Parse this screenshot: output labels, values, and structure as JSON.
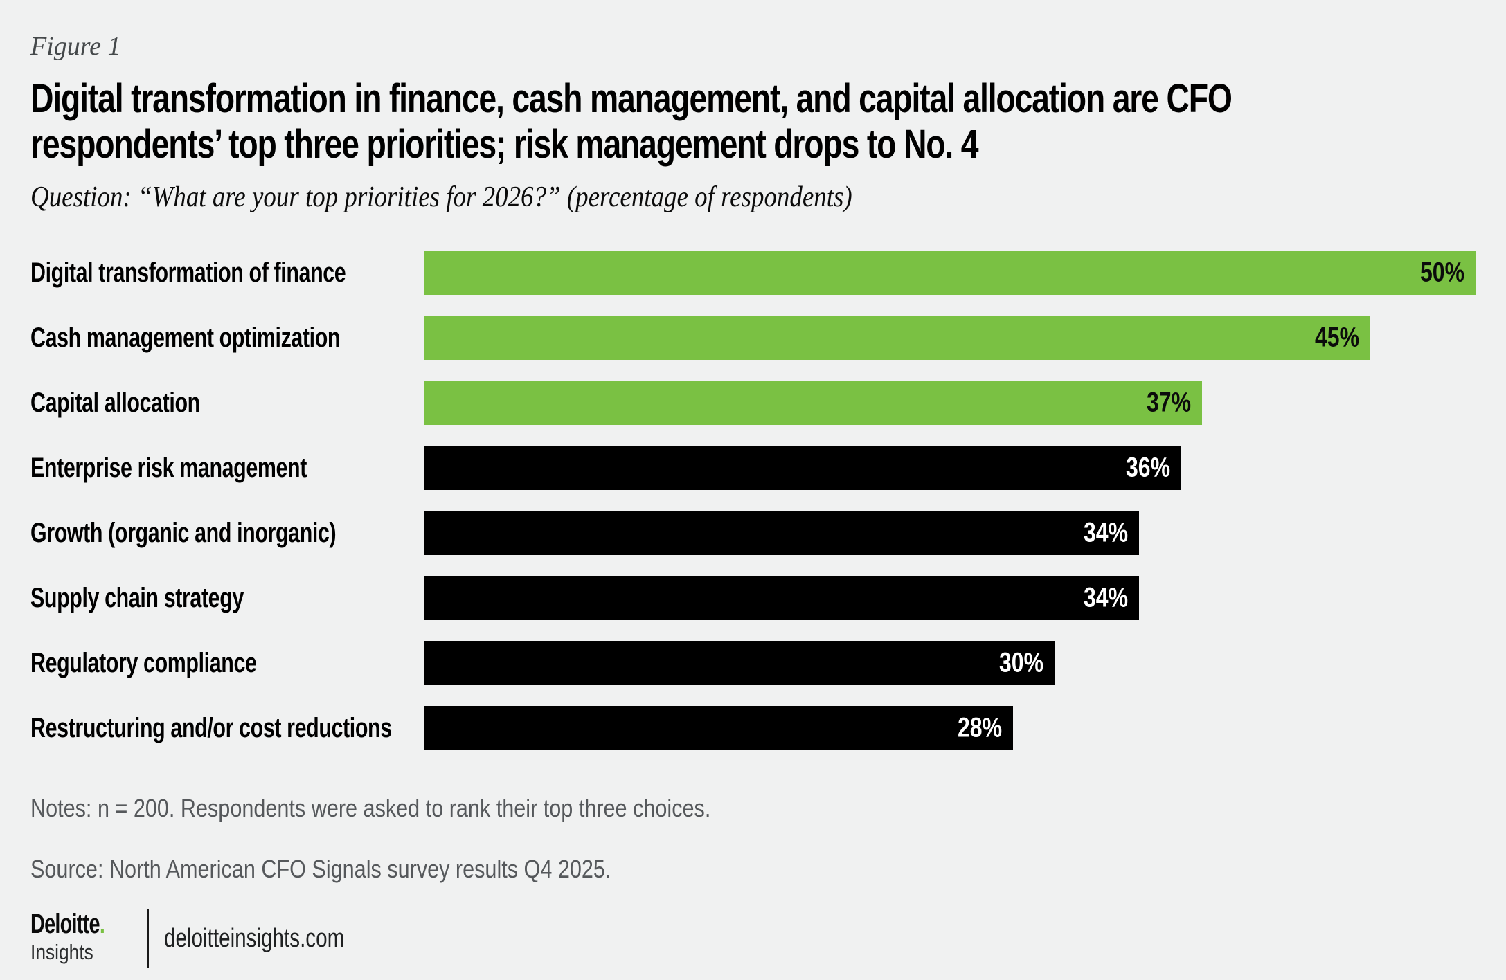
{
  "figure_label": "Figure 1",
  "title": {
    "line1": "Digital transformation in finance, cash management, and capital allocation are CFO",
    "line2": "respondents’ top three priorities; risk management drops to No. 4"
  },
  "subtitle": "Question: “What are your top priorities for 2026?” (percentage of respondents)",
  "chart_data": {
    "type": "bar",
    "orientation": "horizontal",
    "title": "Digital transformation in finance, cash management, and capital allocation are CFO respondents’ top three priorities; risk management drops to No. 4",
    "xlabel": "",
    "ylabel": "",
    "xlim": [
      0,
      50
    ],
    "unit": "%",
    "grid": false,
    "legend": "none",
    "categories": [
      "Digital transformation of finance",
      "Cash management optimization",
      "Capital allocation",
      "Enterprise risk management",
      "Growth (organic and inorganic)",
      "Supply chain strategy",
      "Regulatory compliance",
      "Restructuring and/or cost reductions"
    ],
    "values": [
      50,
      45,
      37,
      36,
      34,
      34,
      30,
      28
    ],
    "bars": [
      {
        "label": "Digital transformation of finance",
        "value": 50,
        "display": "50%",
        "color": "#7ac143",
        "label_color": "#0b0b0b"
      },
      {
        "label": "Cash management optimization",
        "value": 45,
        "display": "45%",
        "color": "#7ac143",
        "label_color": "#0b0b0b"
      },
      {
        "label": "Capital allocation",
        "value": 37,
        "display": "37%",
        "color": "#7ac143",
        "label_color": "#0b0b0b"
      },
      {
        "label": "Enterprise risk management",
        "value": 36,
        "display": "36%",
        "color": "#000000",
        "label_color": "#ffffff"
      },
      {
        "label": "Growth (organic and inorganic)",
        "value": 34,
        "display": "34%",
        "color": "#000000",
        "label_color": "#ffffff"
      },
      {
        "label": "Supply chain strategy",
        "value": 34,
        "display": "34%",
        "color": "#000000",
        "label_color": "#ffffff"
      },
      {
        "label": "Regulatory compliance",
        "value": 30,
        "display": "30%",
        "color": "#000000",
        "label_color": "#ffffff"
      },
      {
        "label": "Restructuring and/or cost reductions",
        "value": 28,
        "display": "28%",
        "color": "#000000",
        "label_color": "#ffffff"
      }
    ]
  },
  "notes": "Notes: n = 200. Respondents were asked to rank their top three choices.",
  "source": "Source: North American CFO Signals survey results Q4 2025.",
  "footer": {
    "brand_name": "Deloitte",
    "brand_dot": ".",
    "brand_sub": "Insights",
    "website": "deloitteinsights.com"
  },
  "colors": {
    "background": "#f0f1f1",
    "highlight_green": "#7ac143",
    "bar_black": "#000000",
    "note_gray": "#55585b"
  }
}
